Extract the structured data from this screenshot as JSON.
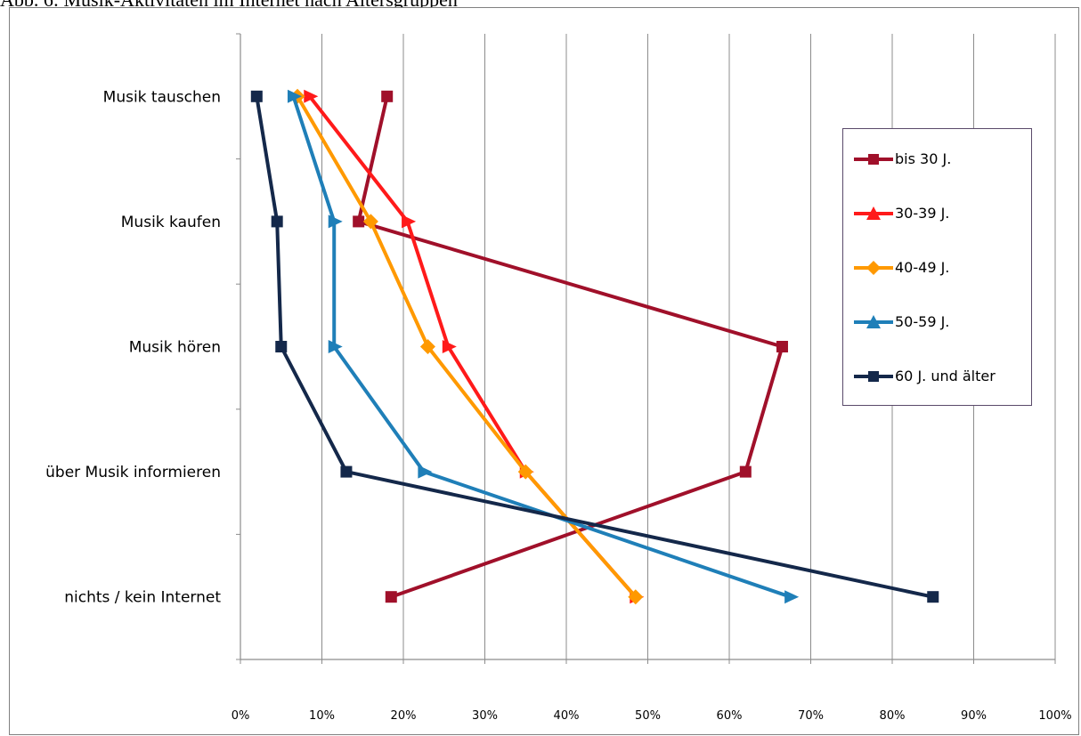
{
  "page_title": "Abb. 6: Musik-Aktivitäten im Internet nach Altersgruppen",
  "chart_data": {
    "type": "line",
    "title": "",
    "xlabel": "",
    "ylabel": "",
    "xlim": [
      0,
      100
    ],
    "x_unit": "%",
    "x_ticks": [
      "0%",
      "10%",
      "20%",
      "30%",
      "40%",
      "50%",
      "60%",
      "70%",
      "80%",
      "90%",
      "100%"
    ],
    "categories": [
      "Musik tauschen",
      "Musik kaufen",
      "Musik hören",
      "über Musik informieren",
      "nichts  / kein Internet"
    ],
    "grid": "vertical",
    "legend_position": "right",
    "series": [
      {
        "name": "bis 30 J.",
        "color": "#a0102a",
        "marker": "square",
        "values": [
          18,
          14.5,
          66.5,
          62,
          18.5
        ]
      },
      {
        "name": "30-39 J.",
        "color": "#ff1a1a",
        "marker": "triangle",
        "values": [
          8.5,
          20.5,
          25.5,
          35,
          48.5
        ]
      },
      {
        "name": "40-49 J.",
        "color": "#ff9900",
        "marker": "diamond",
        "values": [
          7,
          16,
          23,
          35,
          48.5
        ]
      },
      {
        "name": "50-59 J.",
        "color": "#1f7fb8",
        "marker": "triangle",
        "values": [
          6.5,
          11.5,
          11.5,
          22.5,
          67.5
        ]
      },
      {
        "name": "60 J. und älter",
        "color": "#14284a",
        "marker": "square",
        "values": [
          2,
          4.5,
          5,
          13,
          85
        ]
      }
    ]
  }
}
